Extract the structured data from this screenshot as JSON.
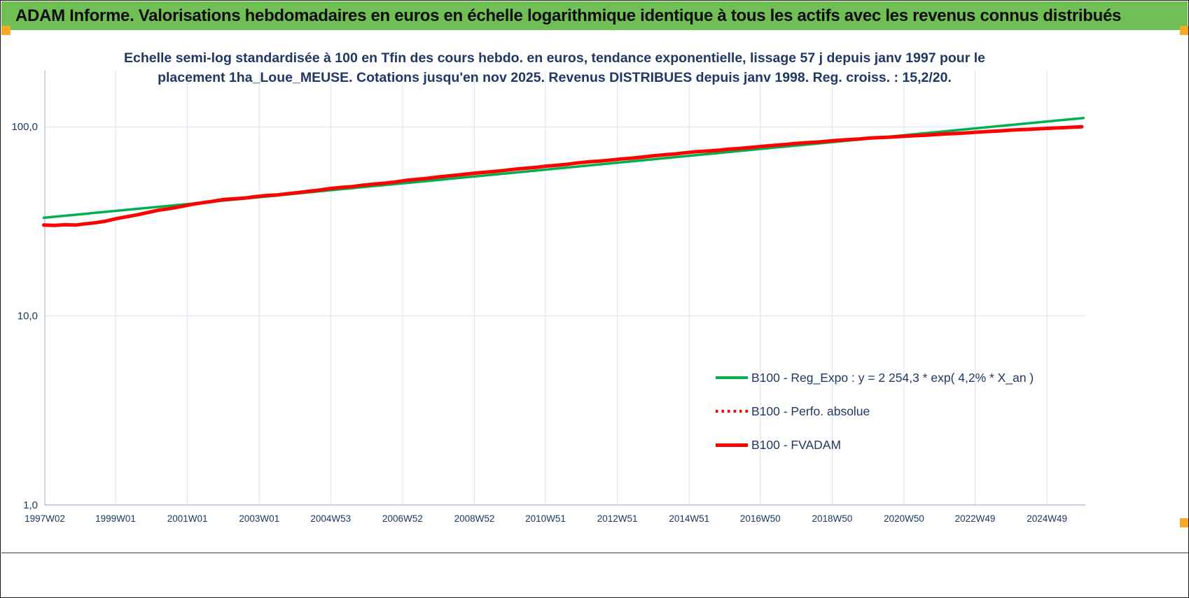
{
  "header": {
    "title": "ADAM Informe. Valorisations hebdomadaires en euros en échelle logarithmique identique à tous les actifs avec les revenus connus distribués",
    "bg_color": "#70BF54"
  },
  "selection_handles": {
    "color": "#F9A825"
  },
  "chart_data": {
    "type": "line",
    "title_line1": "Echelle semi-log standardisée à 100 en Tfin des cours hebdo. en euros, tendance exponentielle, lissage 57 j depuis janv 1997 pour le",
    "title_line2": "placement 1ha_Loue_MEUSE. Cotations jusqu'en nov 2025. Revenus DISTRIBUES depuis janv 1998. Reg. croiss. : 15,2/20.",
    "y_scale": "log",
    "grid": true,
    "legend_position": "inside-right",
    "x_range": [
      1997.03,
      2026.0
    ],
    "y_range": [
      1.0,
      198.0
    ],
    "colors": {
      "grid": "#D9E1F2",
      "axis": "#A6B8D4",
      "tick_text": "#17375E"
    },
    "y_ticks": [
      {
        "value": 100,
        "label": "100,0"
      },
      {
        "value": 10,
        "label": "10,0"
      },
      {
        "value": 1,
        "label": "1,0"
      }
    ],
    "x_ticks": [
      {
        "year": 1997.03,
        "label": "1997W02"
      },
      {
        "year": 1999.0,
        "label": "1999W01"
      },
      {
        "year": 2001.0,
        "label": "2001W01"
      },
      {
        "year": 2003.0,
        "label": "2003W01"
      },
      {
        "year": 2004.99,
        "label": "2004W53"
      },
      {
        "year": 2006.99,
        "label": "2006W52"
      },
      {
        "year": 2008.99,
        "label": "2008W52"
      },
      {
        "year": 2010.97,
        "label": "2010W51"
      },
      {
        "year": 2012.97,
        "label": "2012W51"
      },
      {
        "year": 2014.97,
        "label": "2014W51"
      },
      {
        "year": 2016.95,
        "label": "2016W50"
      },
      {
        "year": 2018.95,
        "label": "2018W50"
      },
      {
        "year": 2020.95,
        "label": "2020W50"
      },
      {
        "year": 2022.93,
        "label": "2022W49"
      },
      {
        "year": 2024.93,
        "label": "2024W49"
      }
    ],
    "series": [
      {
        "name": "B100 - Reg_Expo : y = 2 254,3 * exp( 4,2% *  X_an )",
        "color": "#00B050",
        "style": "solid",
        "width": 3.5,
        "points": [
          [
            1997.0,
            33.0
          ],
          [
            1999.0,
            35.9
          ],
          [
            2001.0,
            39.0
          ],
          [
            2003.0,
            42.4
          ],
          [
            2005.0,
            46.2
          ],
          [
            2007.0,
            50.2
          ],
          [
            2009.0,
            54.6
          ],
          [
            2011.0,
            59.4
          ],
          [
            2013.0,
            64.6
          ],
          [
            2015.0,
            70.3
          ],
          [
            2017.0,
            76.4
          ],
          [
            2019.0,
            83.1
          ],
          [
            2021.0,
            90.4
          ],
          [
            2023.0,
            98.3
          ],
          [
            2025.0,
            106.9
          ],
          [
            2025.95,
            111.2
          ]
        ]
      },
      {
        "name": "B100 - Perfo. absolue",
        "color": "#FF0000",
        "style": "dotted",
        "width": 3.5,
        "same_as": "B100 - FVADAM"
      },
      {
        "name": "B100 - FVADAM",
        "color": "#FF0000",
        "style": "solid",
        "width": 5,
        "points": [
          [
            1997.0,
            30.2
          ],
          [
            1997.3,
            30.1
          ],
          [
            1997.6,
            30.3
          ],
          [
            1997.9,
            30.2
          ],
          [
            1998.1,
            30.6
          ],
          [
            1998.4,
            31.0
          ],
          [
            1998.7,
            31.6
          ],
          [
            1999.0,
            32.6
          ],
          [
            1999.3,
            33.4
          ],
          [
            1999.6,
            34.2
          ],
          [
            1999.9,
            35.2
          ],
          [
            2000.2,
            36.2
          ],
          [
            2000.5,
            36.9
          ],
          [
            2000.8,
            37.8
          ],
          [
            2001.1,
            38.8
          ],
          [
            2001.4,
            39.6
          ],
          [
            2001.7,
            40.3
          ],
          [
            2002.0,
            41.2
          ],
          [
            2002.3,
            41.6
          ],
          [
            2002.6,
            42.0
          ],
          [
            2002.9,
            42.7
          ],
          [
            2003.2,
            43.3
          ],
          [
            2003.5,
            43.6
          ],
          [
            2003.8,
            44.3
          ],
          [
            2004.1,
            44.9
          ],
          [
            2004.4,
            45.6
          ],
          [
            2004.7,
            46.3
          ],
          [
            2005.0,
            47.2
          ],
          [
            2005.3,
            47.8
          ],
          [
            2005.6,
            48.3
          ],
          [
            2005.9,
            49.1
          ],
          [
            2006.2,
            49.8
          ],
          [
            2006.5,
            50.3
          ],
          [
            2006.8,
            51.1
          ],
          [
            2007.1,
            52.1
          ],
          [
            2007.4,
            52.7
          ],
          [
            2007.7,
            53.4
          ],
          [
            2008.0,
            54.3
          ],
          [
            2008.3,
            55.0
          ],
          [
            2008.6,
            55.7
          ],
          [
            2008.9,
            56.6
          ],
          [
            2009.2,
            57.3
          ],
          [
            2009.5,
            57.9
          ],
          [
            2009.8,
            58.7
          ],
          [
            2010.1,
            59.6
          ],
          [
            2010.4,
            60.3
          ],
          [
            2010.7,
            61.0
          ],
          [
            2011.0,
            61.9
          ],
          [
            2011.3,
            62.6
          ],
          [
            2011.6,
            63.4
          ],
          [
            2011.9,
            64.5
          ],
          [
            2012.2,
            65.3
          ],
          [
            2012.5,
            65.9
          ],
          [
            2012.8,
            66.7
          ],
          [
            2013.1,
            67.6
          ],
          [
            2013.4,
            68.3
          ],
          [
            2013.7,
            69.2
          ],
          [
            2014.0,
            70.3
          ],
          [
            2014.3,
            71.1
          ],
          [
            2014.6,
            71.9
          ],
          [
            2014.9,
            73.0
          ],
          [
            2015.2,
            73.9
          ],
          [
            2015.5,
            74.4
          ],
          [
            2015.8,
            75.2
          ],
          [
            2016.1,
            76.2
          ],
          [
            2016.4,
            76.9
          ],
          [
            2016.7,
            77.7
          ],
          [
            2017.0,
            78.8
          ],
          [
            2017.3,
            79.6
          ],
          [
            2017.6,
            80.4
          ],
          [
            2017.9,
            81.5
          ],
          [
            2018.2,
            82.3
          ],
          [
            2018.5,
            82.9
          ],
          [
            2018.8,
            83.8
          ],
          [
            2019.1,
            84.8
          ],
          [
            2019.4,
            85.5
          ],
          [
            2019.7,
            86.2
          ],
          [
            2020.0,
            87.1
          ],
          [
            2020.3,
            87.7
          ],
          [
            2020.6,
            88.2
          ],
          [
            2020.9,
            88.9
          ],
          [
            2021.2,
            89.6
          ],
          [
            2021.5,
            90.1
          ],
          [
            2021.8,
            90.8
          ],
          [
            2022.1,
            91.6
          ],
          [
            2022.4,
            92.1
          ],
          [
            2022.7,
            92.8
          ],
          [
            2023.0,
            93.7
          ],
          [
            2023.3,
            94.4
          ],
          [
            2023.6,
            95.0
          ],
          [
            2023.9,
            95.9
          ],
          [
            2024.2,
            96.5
          ],
          [
            2024.5,
            97.0
          ],
          [
            2024.8,
            97.7
          ],
          [
            2025.1,
            98.4
          ],
          [
            2025.4,
            98.9
          ],
          [
            2025.7,
            99.5
          ],
          [
            2025.9,
            100.0
          ]
        ]
      }
    ]
  }
}
